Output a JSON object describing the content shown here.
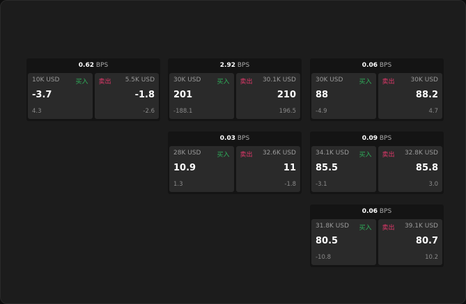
{
  "colors": {
    "buy": "#2fae5a",
    "sell": "#e0386a"
  },
  "labels": {
    "buy": "买入",
    "sell": "卖出",
    "unit": "BPS"
  },
  "cards": [
    {
      "spread": "0.62",
      "buy": {
        "size": "10K USD",
        "price": "-3.7",
        "change": "4.3"
      },
      "sell": {
        "size": "5.5K USD",
        "price": "-1.8",
        "change": "-2.6"
      }
    },
    {
      "spread": "2.92",
      "buy": {
        "size": "30K USD",
        "price": "201",
        "change": "-188.1"
      },
      "sell": {
        "size": "30.1K USD",
        "price": "210",
        "change": "196.5"
      }
    },
    {
      "spread": "0.06",
      "buy": {
        "size": "30K USD",
        "price": "88",
        "change": "-4.9"
      },
      "sell": {
        "size": "30K USD",
        "price": "88.2",
        "change": "4.7"
      }
    },
    {
      "spread": "0.03",
      "buy": {
        "size": "28K USD",
        "price": "10.9",
        "change": "1.3"
      },
      "sell": {
        "size": "32.6K USD",
        "price": "11",
        "change": "-1.8"
      }
    },
    {
      "spread": "0.09",
      "buy": {
        "size": "34.1K USD",
        "price": "85.5",
        "change": "-3.1"
      },
      "sell": {
        "size": "32.8K USD",
        "price": "85.8",
        "change": "3.0"
      }
    },
    {
      "spread": "0.06",
      "buy": {
        "size": "31.8K USD",
        "price": "80.5",
        "change": "-10.8"
      },
      "sell": {
        "size": "39.1K USD",
        "price": "80.7",
        "change": "10.2"
      }
    }
  ]
}
